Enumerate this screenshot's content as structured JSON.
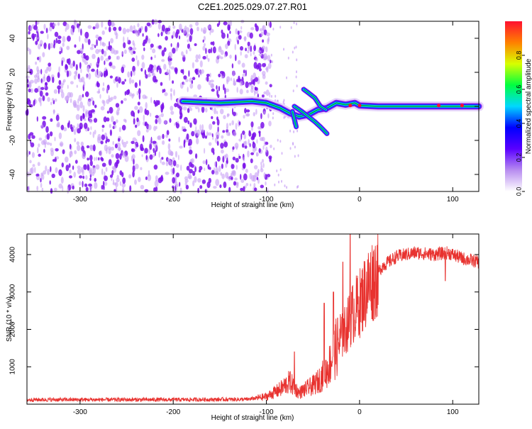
{
  "title": "C2E1.2025.029.07.27.R01",
  "colors": {
    "snr_line": "#e8322f",
    "track": "#00aa30",
    "scatter_dark": "#7a10ea",
    "scatter_light": "#c8a0f5"
  },
  "chart_data": [
    {
      "type": "heatmap",
      "xlabel": "Height of straight line (km)",
      "ylabel": "Frequency (Hz)",
      "xlim": [
        -357,
        128
      ],
      "ylim": [
        -50,
        50
      ],
      "xticks": [
        -300,
        -200,
        -100,
        0,
        100
      ],
      "yticks": [
        -40,
        -20,
        0,
        20,
        40
      ],
      "grid": false,
      "colorbar": {
        "label": "Normalized spectral amplitude",
        "range": [
          0,
          1
        ],
        "ticks": [
          "0.0",
          "0.2",
          "0.4",
          "0.6",
          "0.8"
        ],
        "colormap": [
          "#ffffff",
          "#b88cf0",
          "#5a00ff",
          "#0000ff",
          "#00d8ff",
          "#00ff40",
          "#d8ff00",
          "#ff8000",
          "#ff1030"
        ]
      },
      "noise_region_x": [
        -357,
        -95
      ],
      "main_track": {
        "x": [
          -190,
          -150,
          -115,
          -100,
          -85,
          -75,
          -65,
          -55,
          -45,
          -35,
          -25,
          -15,
          -5,
          0,
          20,
          50,
          85,
          100,
          128
        ],
        "y": [
          3,
          2,
          3,
          2,
          -1,
          -4,
          -6,
          -5,
          -2,
          -1,
          2,
          1,
          2,
          0.5,
          0,
          0,
          0,
          0,
          0
        ]
      },
      "branches": [
        {
          "x": [
            -60,
            -55,
            -48,
            -42,
            -36
          ],
          "y": [
            10,
            8,
            5,
            0,
            -2
          ]
        },
        {
          "x": [
            -70,
            -62,
            -55,
            -48,
            -42,
            -35
          ],
          "y": [
            0,
            -3,
            -6,
            -9,
            -12,
            -16
          ]
        },
        {
          "x": [
            -72,
            -68
          ],
          "y": [
            -3,
            -12
          ]
        }
      ]
    },
    {
      "type": "line",
      "xlabel": "Height of straight line (km)",
      "ylabel": "SNR (10 * v/v)",
      "xlim": [
        -357,
        128
      ],
      "ylim": [
        0,
        4550
      ],
      "xticks": [
        -300,
        -200,
        -100,
        0,
        100
      ],
      "yticks": [
        1000,
        2000,
        3000,
        4000
      ],
      "grid": false,
      "envelope": {
        "x": [
          -357,
          -300,
          -200,
          -120,
          -100,
          -85,
          -75,
          -65,
          -58,
          -50,
          -45,
          -35,
          -25,
          -15,
          -8,
          0,
          10,
          25,
          40,
          60,
          80,
          95,
          110,
          128
        ],
        "y": [
          120,
          120,
          120,
          130,
          200,
          400,
          600,
          300,
          400,
          500,
          600,
          900,
          1500,
          2000,
          2400,
          2700,
          3200,
          3700,
          3950,
          4050,
          4000,
          4050,
          3900,
          3800
        ]
      },
      "spikes": [
        {
          "x": -70,
          "y": 1400
        },
        {
          "x": -38,
          "y": 2700
        },
        {
          "x": -28,
          "y": 3000
        },
        {
          "x": -18,
          "y": 3800
        },
        {
          "x": -10,
          "y": 4550
        },
        {
          "x": 92,
          "y": 3300
        }
      ]
    }
  ]
}
